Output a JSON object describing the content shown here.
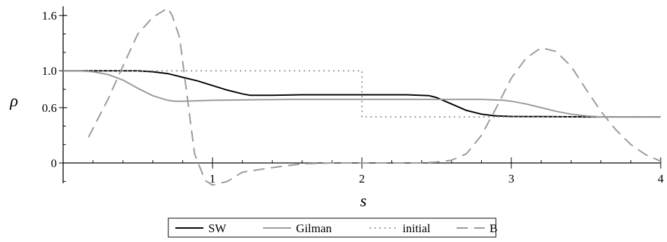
{
  "chart_data": {
    "type": "line",
    "xlabel": "s",
    "ylabel": "ρ",
    "xlim": [
      0,
      4
    ],
    "ylim": [
      -0.22,
      1.7
    ],
    "x_ticks": [
      {
        "v": 1,
        "label": "1"
      },
      {
        "v": 2,
        "label": "2"
      },
      {
        "v": 3,
        "label": "3"
      },
      {
        "v": 4,
        "label": "4"
      }
    ],
    "y_ticks": [
      {
        "v": 0,
        "label": "0"
      },
      {
        "v": 0.6,
        "label": "0.6"
      },
      {
        "v": 1.0,
        "label": "1.0"
      },
      {
        "v": 1.6,
        "label": "1.6"
      }
    ],
    "x_minor_step": 0.2,
    "y_minor_step": 0.2,
    "grid": false,
    "legend_position": "bottom-center",
    "series": [
      {
        "name": "SW",
        "color": "#000000",
        "dash": "solid",
        "x": [
          0,
          0.3,
          0.5,
          0.6,
          0.7,
          0.8,
          0.9,
          1.0,
          1.1,
          1.2,
          1.25,
          1.4,
          1.6,
          2.0,
          2.3,
          2.45,
          2.5,
          2.6,
          2.7,
          2.8,
          2.9,
          3.0,
          3.5,
          4.0
        ],
        "y": [
          1.0,
          1.0,
          1.0,
          0.99,
          0.97,
          0.93,
          0.89,
          0.84,
          0.79,
          0.75,
          0.735,
          0.735,
          0.74,
          0.74,
          0.74,
          0.73,
          0.71,
          0.64,
          0.57,
          0.53,
          0.51,
          0.505,
          0.5,
          0.5
        ]
      },
      {
        "name": "Gilman",
        "color": "#999999",
        "dash": "solid",
        "x": [
          0,
          0.1,
          0.2,
          0.3,
          0.4,
          0.5,
          0.6,
          0.7,
          0.75,
          0.8,
          1.0,
          1.5,
          2.0,
          2.5,
          2.8,
          2.95,
          3.0,
          3.1,
          3.2,
          3.3,
          3.4,
          3.5,
          3.6,
          3.8,
          4.0
        ],
        "y": [
          1.0,
          1.0,
          0.99,
          0.96,
          0.9,
          0.81,
          0.73,
          0.68,
          0.67,
          0.67,
          0.68,
          0.69,
          0.69,
          0.69,
          0.69,
          0.68,
          0.67,
          0.64,
          0.6,
          0.56,
          0.53,
          0.51,
          0.5,
          0.5,
          0.5
        ]
      },
      {
        "name": "initial",
        "color": "#999999",
        "dash": "dotted",
        "x": [
          0,
          2.0,
          2.0,
          4.0
        ],
        "y": [
          1.0,
          1.0,
          0.5,
          0.5
        ]
      },
      {
        "name": "B",
        "color": "#999999",
        "dash": "dashed",
        "x": [
          0.17,
          0.3,
          0.4,
          0.5,
          0.6,
          0.65,
          0.7,
          0.73,
          0.78,
          0.82,
          0.88,
          0.95,
          1.0,
          1.1,
          1.2,
          1.4,
          1.6,
          1.8,
          2.0,
          2.2,
          2.4,
          2.5,
          2.6,
          2.7,
          2.8,
          2.9,
          3.0,
          3.1,
          3.2,
          3.3,
          3.4,
          3.5,
          3.6,
          3.7,
          3.8,
          3.9,
          4.0
        ],
        "y": [
          0.28,
          0.69,
          1.05,
          1.4,
          1.58,
          1.63,
          1.68,
          1.6,
          1.36,
          0.85,
          0.1,
          -0.19,
          -0.24,
          -0.2,
          -0.1,
          -0.05,
          -0.01,
          0,
          0,
          0,
          0,
          0.01,
          0.03,
          0.1,
          0.3,
          0.6,
          0.92,
          1.14,
          1.25,
          1.21,
          1.05,
          0.8,
          0.56,
          0.36,
          0.2,
          0.09,
          0.02
        ]
      }
    ]
  }
}
